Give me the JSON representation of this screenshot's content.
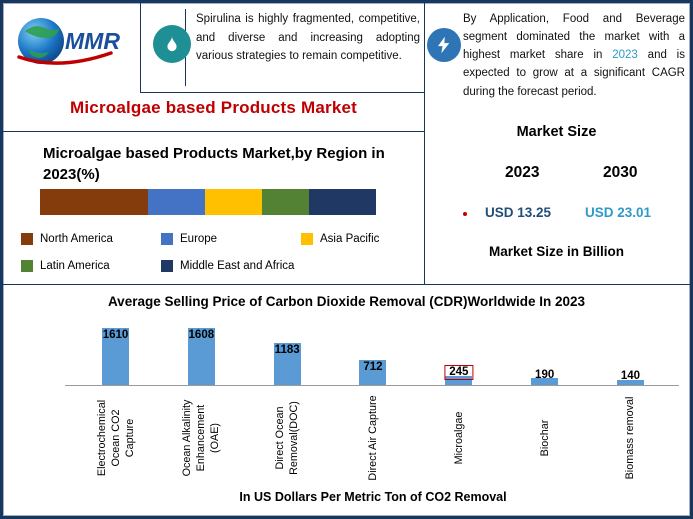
{
  "page": {
    "border_color": "#17375E",
    "accent_red": "#C00000"
  },
  "logo": {
    "text": "MMR"
  },
  "icons": {
    "flame_bg": "#1F8F96",
    "bolt_bg": "#2E75B6"
  },
  "top_notes": {
    "left": "Spirulina is highly fragmented, competitive, and diverse and increasing adopting various strategies to remain competitive.",
    "right_pre": "By Application, Food and Beverage segment dominated the market with a highest market share in ",
    "right_year": "2023",
    "right_post": " and is expected to grow at a significant CAGR during the forecast period.",
    "right_year_color": "#2E9AC7"
  },
  "main_title": "Microalgae based Products Market",
  "market_size": {
    "title": "Market Size",
    "year_left": "2023",
    "year_right": "2030",
    "value_left": "USD 13.25",
    "value_right": "USD 23.01",
    "value_left_color": "#1F4E79",
    "value_right_color": "#2E9AC7",
    "unit_label": "Market Size in Billion"
  },
  "chart_data": [
    {
      "type": "bar",
      "subtype": "horizontal-stacked",
      "title": "Microalgae based Products Market,by Region in 2023(%)",
      "categories": [
        "North America",
        "Europe",
        "Asia Pacific",
        "Latin America",
        "Middle East and Africa"
      ],
      "values": [
        32,
        17,
        17,
        14,
        20
      ],
      "colors": [
        "#843C0C",
        "#4472C4",
        "#FFC000",
        "#548235",
        "#1F3864"
      ],
      "legend_position": "bottom",
      "xlabel": "",
      "ylabel": ""
    },
    {
      "type": "bar",
      "title": "Average Selling Price of Carbon Dioxide Removal (CDR)Worldwide In 2023",
      "categories": [
        "Electrochemical Ocean CO2 Capture",
        "Ocean Alkalinity Enhancement (OAE)",
        "Direct Ocean Removal(DOC)",
        "Direct Air Capture",
        "Microalgae",
        "Biochar",
        "Biomass removal"
      ],
      "values": [
        1610,
        1608,
        1183,
        712,
        245,
        190,
        140
      ],
      "bar_color": "#5B9BD5",
      "highlight_index": 4,
      "highlight_box_color": "#C00000",
      "xlabel": "In US Dollars Per Metric Ton of CO2 Removal",
      "ylabel": "",
      "ylim": [
        0,
        1700
      ],
      "grid": false,
      "legend": false
    }
  ]
}
